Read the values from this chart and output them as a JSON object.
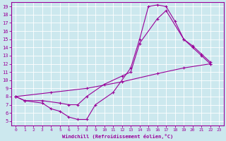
{
  "xlabel": "Windchill (Refroidissement éolien,°C)",
  "bg_color": "#cce8ee",
  "line_color": "#990099",
  "xlim": [
    -0.5,
    23.5
  ],
  "ylim": [
    4.5,
    19.5
  ],
  "xticks": [
    0,
    1,
    2,
    3,
    4,
    5,
    6,
    7,
    8,
    9,
    10,
    11,
    12,
    13,
    14,
    15,
    16,
    17,
    18,
    19,
    20,
    21,
    22,
    23
  ],
  "yticks": [
    5,
    6,
    7,
    8,
    9,
    10,
    11,
    12,
    13,
    14,
    15,
    16,
    17,
    18,
    19
  ],
  "line1_x": [
    0,
    1,
    3,
    4,
    5,
    6,
    7,
    8,
    9,
    11,
    13,
    14,
    15,
    16,
    17,
    18,
    19,
    20,
    21,
    22
  ],
  "line1_y": [
    8.0,
    7.5,
    7.2,
    6.5,
    6.2,
    5.5,
    5.2,
    5.2,
    7.0,
    8.5,
    11.5,
    15.0,
    19.0,
    19.2,
    19.0,
    17.2,
    15.0,
    14.0,
    13.0,
    12.0
  ],
  "line2_x": [
    0,
    1,
    3,
    5,
    6,
    7,
    8,
    10,
    12,
    13,
    14,
    16,
    17,
    19,
    20,
    21,
    22
  ],
  "line2_y": [
    8.0,
    7.5,
    7.5,
    7.2,
    7.0,
    7.0,
    8.0,
    9.5,
    10.5,
    11.0,
    14.5,
    17.5,
    18.5,
    15.0,
    14.2,
    13.2,
    12.2
  ],
  "line3_x": [
    0,
    4,
    8,
    12,
    16,
    19,
    22
  ],
  "line3_y": [
    8.0,
    8.5,
    9.0,
    9.8,
    10.8,
    11.5,
    12.0
  ]
}
